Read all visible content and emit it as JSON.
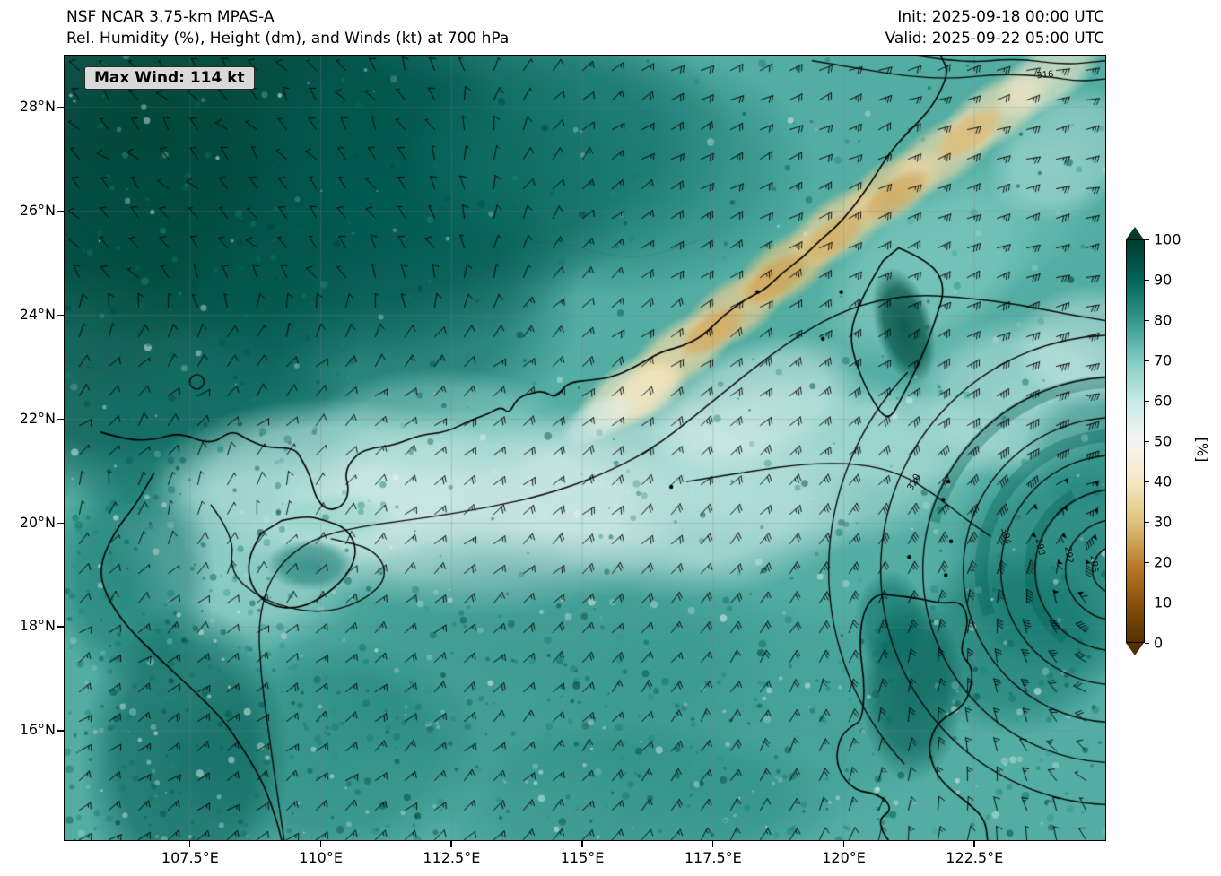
{
  "header": {
    "title_line1": "NSF NCAR 3.75-km MPAS-A",
    "title_line2": "Rel. Humidity (%), Height (dm), and Winds (kt) at 700 hPa",
    "init_label": "Init: 2025-09-18 00:00 UTC",
    "valid_label": "Valid: 2025-09-22 05:00 UTC"
  },
  "badge": {
    "max_wind_label": "Max Wind: 114 kt"
  },
  "axes": {
    "y_ticks": [
      "28°N",
      "26°N",
      "24°N",
      "22°N",
      "20°N",
      "18°N",
      "16°N"
    ],
    "x_ticks": [
      "107.5°E",
      "110°E",
      "112.5°E",
      "115°E",
      "117.5°E",
      "120°E",
      "122.5°E"
    ]
  },
  "colorbar": {
    "ticks": [
      "100",
      "90",
      "80",
      "70",
      "60",
      "50",
      "40",
      "30",
      "20",
      "10",
      "0"
    ],
    "label": "[%]",
    "stops": [
      [
        0,
        "#543005"
      ],
      [
        10,
        "#8c510a"
      ],
      [
        20,
        "#bf812d"
      ],
      [
        30,
        "#dfc27d"
      ],
      [
        40,
        "#f6e8c3"
      ],
      [
        50,
        "#f5f5f5"
      ],
      [
        60,
        "#c7eae5"
      ],
      [
        70,
        "#80cdc1"
      ],
      [
        80,
        "#35978f"
      ],
      [
        90,
        "#01665e"
      ],
      [
        100,
        "#003c30"
      ]
    ]
  },
  "chart_data": {
    "type": "heatmap",
    "model": "NSF NCAR 3.75-km MPAS-A",
    "variable": "Relative Humidity (%) at 700 hPa",
    "overlays": [
      "700 hPa geopotential height contours (dm)",
      "700 hPa wind barbs (kt)"
    ],
    "init_time": "2025-09-18 00:00 UTC",
    "valid_time": "2025-09-22 05:00 UTC",
    "max_wind_kt": 114,
    "lon_range": [
      105.1,
      125.0
    ],
    "lat_range": [
      13.9,
      29.0
    ],
    "x_tick_values": [
      107.5,
      110,
      112.5,
      115,
      117.5,
      120,
      122.5
    ],
    "y_tick_values": [
      28,
      26,
      24,
      22,
      20,
      18,
      16
    ],
    "colorbar_range": [
      0,
      100
    ],
    "colorbar_extend": "both",
    "height_contour_labels_dm": [
      316,
      310,
      304,
      298,
      292,
      286
    ],
    "contour_annotations": [
      {
        "text": "316",
        "lon": 123.85,
        "lat": 28.62,
        "rot": -6
      },
      {
        "text": "310",
        "lon": 121.35,
        "lat": 20.78,
        "rot": -62
      },
      {
        "text": "304",
        "lon": 123.1,
        "lat": 19.75,
        "rot": 75
      },
      {
        "text": "298",
        "lon": 123.75,
        "lat": 19.55,
        "rot": 78
      },
      {
        "text": "292",
        "lon": 124.3,
        "lat": 19.38,
        "rot": 81
      },
      {
        "text": "286",
        "lon": 124.78,
        "lat": 19.22,
        "rot": 85
      }
    ],
    "vortex": {
      "lon": 125.2,
      "lat": 19.1,
      "max_tangential_kt": 95
    },
    "region_format": "[lon_center, lat_center, rx_deg, ry_deg, rotation_deg, rh_percent, alpha]",
    "humidity_regions": [
      [
        106.5,
        27.5,
        7,
        4,
        0,
        99,
        0.95
      ],
      [
        110.0,
        26.5,
        6,
        3.5,
        0,
        97,
        0.85
      ],
      [
        106.3,
        23.8,
        4.5,
        3.5,
        0,
        96,
        0.8
      ],
      [
        113.0,
        27.3,
        5,
        2.8,
        0,
        92,
        0.7
      ],
      [
        115.5,
        26.8,
        4,
        2.5,
        0,
        86,
        0.55
      ],
      [
        111.0,
        24.3,
        4,
        3,
        0,
        92,
        0.6
      ],
      [
        108.0,
        21.5,
        3,
        2,
        0,
        88,
        0.5
      ],
      [
        110.2,
        20.8,
        3.5,
        1.6,
        0,
        60,
        0.7
      ],
      [
        113.0,
        20.2,
        4,
        2,
        0,
        55,
        0.75
      ],
      [
        116.5,
        20.5,
        4,
        2,
        0,
        57,
        0.7
      ],
      [
        119.3,
        21.2,
        3.5,
        1.8,
        0,
        62,
        0.6
      ],
      [
        112.3,
        21.9,
        2.5,
        1.1,
        0,
        66,
        0.5
      ],
      [
        108.6,
        19.5,
        2.6,
        2,
        0,
        62,
        0.6
      ],
      [
        118.3,
        22.3,
        2.2,
        1.2,
        -20,
        55,
        0.6
      ],
      [
        121.0,
        21.6,
        2.5,
        1,
        0,
        63,
        0.5
      ],
      [
        110.3,
        20.1,
        1.2,
        0.5,
        0,
        70,
        0.4
      ],
      [
        115.9,
        22.5,
        1.2,
        0.6,
        -35,
        40,
        0.8
      ],
      [
        116.9,
        23.3,
        1.2,
        0.6,
        -35,
        36,
        0.85
      ],
      [
        117.9,
        24.1,
        1.2,
        0.6,
        -35,
        33,
        0.85
      ],
      [
        118.9,
        24.9,
        1.2,
        0.6,
        -35,
        31,
        0.85
      ],
      [
        119.9,
        25.7,
        1.2,
        0.6,
        -35,
        34,
        0.85
      ],
      [
        120.9,
        26.4,
        1.2,
        0.6,
        -35,
        33,
        0.85
      ],
      [
        121.9,
        27.1,
        1.3,
        0.6,
        -35,
        36,
        0.8
      ],
      [
        122.9,
        27.9,
        1.3,
        0.6,
        -35,
        38,
        0.8
      ],
      [
        123.9,
        28.6,
        1.2,
        0.6,
        -35,
        42,
        0.7
      ],
      [
        117.5,
        23.7,
        0.8,
        0.35,
        -35,
        26,
        0.8
      ],
      [
        118.7,
        24.7,
        0.8,
        0.35,
        -35,
        25,
        0.8
      ],
      [
        119.8,
        25.5,
        0.8,
        0.35,
        -35,
        27,
        0.8
      ],
      [
        121.0,
        26.3,
        0.8,
        0.35,
        -35,
        26,
        0.8
      ],
      [
        122.4,
        27.5,
        0.8,
        0.35,
        -35,
        28,
        0.75
      ],
      [
        116.2,
        22.5,
        0.9,
        0.5,
        -30,
        40,
        0.8
      ],
      [
        115.3,
        22.0,
        0.8,
        0.4,
        -30,
        55,
        0.6
      ],
      [
        121.6,
        24.9,
        2.5,
        1.5,
        -35,
        68,
        0.6
      ],
      [
        123.1,
        25.9,
        2,
        1.4,
        -35,
        72,
        0.5
      ],
      [
        124.2,
        27.1,
        1.6,
        1.2,
        -35,
        62,
        0.55
      ],
      [
        123.4,
        22.4,
        2.2,
        1.6,
        0,
        60,
        0.6
      ],
      [
        124.7,
        23.4,
        1.5,
        1.2,
        0,
        56,
        0.5
      ],
      [
        124.5,
        19.2,
        2.6,
        2.2,
        0,
        88,
        0.55
      ],
      [
        123.2,
        17.7,
        2.1,
        1.8,
        0,
        90,
        0.5
      ],
      [
        124.9,
        21.4,
        1.5,
        1.3,
        0,
        85,
        0.5
      ],
      [
        114.0,
        17.3,
        5,
        2.6,
        0,
        82,
        0.5
      ],
      [
        118.0,
        16.3,
        4,
        2.5,
        0,
        80,
        0.5
      ],
      [
        110.2,
        15.6,
        3,
        2.2,
        0,
        86,
        0.5
      ],
      [
        116.0,
        14.6,
        4,
        1.6,
        0,
        84,
        0.45
      ],
      [
        107.4,
        15.5,
        2,
        3,
        0,
        93,
        0.65
      ],
      [
        106.4,
        19.0,
        1.6,
        2.2,
        0,
        90,
        0.5
      ],
      [
        121.15,
        23.8,
        0.55,
        1.15,
        -15,
        96,
        0.85
      ],
      [
        121.3,
        16.8,
        1.0,
        1.8,
        0,
        93,
        0.7
      ],
      [
        120.9,
        18.1,
        0.7,
        1.0,
        0,
        90,
        0.6
      ],
      [
        109.8,
        19.2,
        0.85,
        0.5,
        0,
        88,
        0.6
      ]
    ]
  }
}
